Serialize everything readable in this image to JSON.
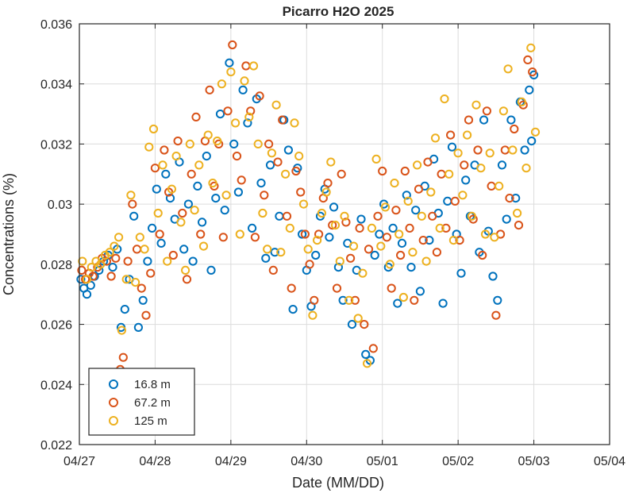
{
  "chart_data": {
    "type": "scatter",
    "title": "Picarro H2O 2025",
    "xlabel": "Date (MM/DD)",
    "ylabel": "Concentrations (%)",
    "x_ticks": [
      "04/27",
      "04/28",
      "04/29",
      "04/30",
      "05/01",
      "05/02",
      "05/03",
      "05/04"
    ],
    "y_ticks": [
      "0.022",
      "0.024",
      "0.026",
      "0.028",
      "0.03",
      "0.032",
      "0.034",
      "0.036"
    ],
    "x_unit": "days since 04/27 00:00",
    "xlim": [
      0,
      7
    ],
    "ylim": [
      0.022,
      0.036
    ],
    "grid": true,
    "legend_position": "bottom-left",
    "series": [
      {
        "name": "16.8 m",
        "color": "#0072BD",
        "points": [
          [
            0.02,
            0.0275
          ],
          [
            0.06,
            0.0272
          ],
          [
            0.1,
            0.027
          ],
          [
            0.15,
            0.0273
          ],
          [
            0.2,
            0.0276
          ],
          [
            0.26,
            0.0278
          ],
          [
            0.32,
            0.0281
          ],
          [
            0.38,
            0.0283
          ],
          [
            0.44,
            0.0279
          ],
          [
            0.5,
            0.0285
          ],
          [
            0.55,
            0.0259
          ],
          [
            0.6,
            0.0265
          ],
          [
            0.66,
            0.0275
          ],
          [
            0.72,
            0.0296
          ],
          [
            0.78,
            0.0259
          ],
          [
            0.84,
            0.0268
          ],
          [
            0.9,
            0.0281
          ],
          [
            0.96,
            0.0292
          ],
          [
            1.02,
            0.0305
          ],
          [
            1.08,
            0.0287
          ],
          [
            1.14,
            0.031
          ],
          [
            1.2,
            0.0302
          ],
          [
            1.26,
            0.0295
          ],
          [
            1.32,
            0.0314
          ],
          [
            1.38,
            0.0285
          ],
          [
            1.44,
            0.03
          ],
          [
            1.5,
            0.0281
          ],
          [
            1.56,
            0.0306
          ],
          [
            1.62,
            0.0294
          ],
          [
            1.68,
            0.0316
          ],
          [
            1.74,
            0.0278
          ],
          [
            1.8,
            0.0302
          ],
          [
            1.86,
            0.033
          ],
          [
            1.92,
            0.0298
          ],
          [
            1.98,
            0.0347
          ],
          [
            2.04,
            0.032
          ],
          [
            2.1,
            0.0304
          ],
          [
            2.16,
            0.0338
          ],
          [
            2.22,
            0.0327
          ],
          [
            2.28,
            0.0292
          ],
          [
            2.34,
            0.0335
          ],
          [
            2.4,
            0.0307
          ],
          [
            2.46,
            0.0282
          ],
          [
            2.52,
            0.0313
          ],
          [
            2.58,
            0.0284
          ],
          [
            2.64,
            0.0296
          ],
          [
            2.7,
            0.0328
          ],
          [
            2.76,
            0.0318
          ],
          [
            2.82,
            0.0265
          ],
          [
            2.88,
            0.0312
          ],
          [
            2.94,
            0.029
          ],
          [
            3.0,
            0.0278
          ],
          [
            3.06,
            0.0266
          ],
          [
            3.12,
            0.0283
          ],
          [
            3.18,
            0.0296
          ],
          [
            3.24,
            0.0305
          ],
          [
            3.3,
            0.0289
          ],
          [
            3.36,
            0.0299
          ],
          [
            3.42,
            0.0279
          ],
          [
            3.48,
            0.0268
          ],
          [
            3.54,
            0.0287
          ],
          [
            3.6,
            0.026
          ],
          [
            3.66,
            0.0278
          ],
          [
            3.72,
            0.0295
          ],
          [
            3.78,
            0.025
          ],
          [
            3.84,
            0.0248
          ],
          [
            3.9,
            0.0283
          ],
          [
            3.96,
            0.029
          ],
          [
            4.02,
            0.03
          ],
          [
            4.08,
            0.0279
          ],
          [
            4.14,
            0.0292
          ],
          [
            4.2,
            0.0267
          ],
          [
            4.26,
            0.0287
          ],
          [
            4.32,
            0.0303
          ],
          [
            4.38,
            0.0279
          ],
          [
            4.44,
            0.0298
          ],
          [
            4.5,
            0.0271
          ],
          [
            4.56,
            0.0306
          ],
          [
            4.62,
            0.0288
          ],
          [
            4.68,
            0.0315
          ],
          [
            4.74,
            0.0297
          ],
          [
            4.8,
            0.0267
          ],
          [
            4.86,
            0.0301
          ],
          [
            4.92,
            0.0319
          ],
          [
            4.98,
            0.029
          ],
          [
            5.04,
            0.0277
          ],
          [
            5.1,
            0.0308
          ],
          [
            5.16,
            0.0296
          ],
          [
            5.22,
            0.0313
          ],
          [
            5.28,
            0.0284
          ],
          [
            5.34,
            0.0328
          ],
          [
            5.4,
            0.0291
          ],
          [
            5.46,
            0.0276
          ],
          [
            5.52,
            0.0268
          ],
          [
            5.58,
            0.0313
          ],
          [
            5.64,
            0.0295
          ],
          [
            5.7,
            0.0328
          ],
          [
            5.76,
            0.0302
          ],
          [
            5.82,
            0.0334
          ],
          [
            5.88,
            0.0318
          ],
          [
            5.94,
            0.0338
          ],
          [
            5.97,
            0.0321
          ],
          [
            6.0,
            0.0343
          ]
        ]
      },
      {
        "name": "67.2 m",
        "color": "#D95319",
        "points": [
          [
            0.03,
            0.0278
          ],
          [
            0.08,
            0.0275
          ],
          [
            0.13,
            0.0277
          ],
          [
            0.18,
            0.0276
          ],
          [
            0.24,
            0.0279
          ],
          [
            0.3,
            0.0282
          ],
          [
            0.36,
            0.0281
          ],
          [
            0.42,
            0.0276
          ],
          [
            0.48,
            0.0282
          ],
          [
            0.54,
            0.0245
          ],
          [
            0.58,
            0.0249
          ],
          [
            0.64,
            0.0281
          ],
          [
            0.7,
            0.03
          ],
          [
            0.76,
            0.0285
          ],
          [
            0.82,
            0.0272
          ],
          [
            0.88,
            0.0263
          ],
          [
            0.94,
            0.0277
          ],
          [
            1.0,
            0.0312
          ],
          [
            1.06,
            0.029
          ],
          [
            1.12,
            0.0318
          ],
          [
            1.18,
            0.0304
          ],
          [
            1.24,
            0.0283
          ],
          [
            1.3,
            0.0321
          ],
          [
            1.36,
            0.0297
          ],
          [
            1.42,
            0.0275
          ],
          [
            1.48,
            0.031
          ],
          [
            1.54,
            0.0329
          ],
          [
            1.6,
            0.029
          ],
          [
            1.66,
            0.0321
          ],
          [
            1.72,
            0.0338
          ],
          [
            1.78,
            0.0306
          ],
          [
            1.84,
            0.032
          ],
          [
            1.9,
            0.0289
          ],
          [
            1.96,
            0.0331
          ],
          [
            2.02,
            0.0353
          ],
          [
            2.08,
            0.0316
          ],
          [
            2.14,
            0.0308
          ],
          [
            2.2,
            0.0346
          ],
          [
            2.26,
            0.0331
          ],
          [
            2.32,
            0.0289
          ],
          [
            2.38,
            0.0336
          ],
          [
            2.44,
            0.0303
          ],
          [
            2.5,
            0.032
          ],
          [
            2.56,
            0.0278
          ],
          [
            2.62,
            0.0314
          ],
          [
            2.68,
            0.0328
          ],
          [
            2.74,
            0.0296
          ],
          [
            2.8,
            0.0272
          ],
          [
            2.86,
            0.0311
          ],
          [
            2.92,
            0.0304
          ],
          [
            2.98,
            0.029
          ],
          [
            3.04,
            0.028
          ],
          [
            3.1,
            0.0268
          ],
          [
            3.16,
            0.029
          ],
          [
            3.22,
            0.0302
          ],
          [
            3.28,
            0.0307
          ],
          [
            3.34,
            0.0293
          ],
          [
            3.4,
            0.0272
          ],
          [
            3.46,
            0.031
          ],
          [
            3.52,
            0.0294
          ],
          [
            3.58,
            0.0282
          ],
          [
            3.64,
            0.0268
          ],
          [
            3.7,
            0.0292
          ],
          [
            3.76,
            0.026
          ],
          [
            3.82,
            0.0285
          ],
          [
            3.88,
            0.0252
          ],
          [
            3.94,
            0.0296
          ],
          [
            4.0,
            0.0311
          ],
          [
            4.06,
            0.0289
          ],
          [
            4.12,
            0.0272
          ],
          [
            4.18,
            0.0298
          ],
          [
            4.24,
            0.0283
          ],
          [
            4.3,
            0.0311
          ],
          [
            4.36,
            0.0292
          ],
          [
            4.42,
            0.0268
          ],
          [
            4.48,
            0.0305
          ],
          [
            4.54,
            0.0288
          ],
          [
            4.6,
            0.0314
          ],
          [
            4.66,
            0.0296
          ],
          [
            4.72,
            0.0284
          ],
          [
            4.78,
            0.031
          ],
          [
            4.84,
            0.0292
          ],
          [
            4.9,
            0.0323
          ],
          [
            4.96,
            0.0301
          ],
          [
            5.02,
            0.0288
          ],
          [
            5.08,
            0.0313
          ],
          [
            5.14,
            0.0328
          ],
          [
            5.2,
            0.0295
          ],
          [
            5.26,
            0.0318
          ],
          [
            5.32,
            0.0283
          ],
          [
            5.38,
            0.0331
          ],
          [
            5.44,
            0.0306
          ],
          [
            5.5,
            0.0263
          ],
          [
            5.56,
            0.029
          ],
          [
            5.62,
            0.0318
          ],
          [
            5.68,
            0.0302
          ],
          [
            5.74,
            0.0325
          ],
          [
            5.8,
            0.0293
          ],
          [
            5.86,
            0.0333
          ],
          [
            5.92,
            0.0348
          ],
          [
            5.98,
            0.0344
          ]
        ]
      },
      {
        "name": "125 m",
        "color": "#EDB120",
        "points": [
          [
            0.04,
            0.0281
          ],
          [
            0.1,
            0.0275
          ],
          [
            0.16,
            0.0279
          ],
          [
            0.22,
            0.0281
          ],
          [
            0.28,
            0.028
          ],
          [
            0.34,
            0.0283
          ],
          [
            0.4,
            0.0284
          ],
          [
            0.46,
            0.0286
          ],
          [
            0.52,
            0.0289
          ],
          [
            0.56,
            0.0258
          ],
          [
            0.62,
            0.0275
          ],
          [
            0.68,
            0.0303
          ],
          [
            0.74,
            0.0274
          ],
          [
            0.8,
            0.0289
          ],
          [
            0.86,
            0.0285
          ],
          [
            0.92,
            0.0319
          ],
          [
            0.98,
            0.0325
          ],
          [
            1.04,
            0.0297
          ],
          [
            1.1,
            0.0313
          ],
          [
            1.16,
            0.0281
          ],
          [
            1.22,
            0.0305
          ],
          [
            1.28,
            0.0316
          ],
          [
            1.34,
            0.0294
          ],
          [
            1.4,
            0.0278
          ],
          [
            1.46,
            0.032
          ],
          [
            1.52,
            0.0298
          ],
          [
            1.58,
            0.0313
          ],
          [
            1.64,
            0.0286
          ],
          [
            1.7,
            0.0323
          ],
          [
            1.76,
            0.0307
          ],
          [
            1.82,
            0.0321
          ],
          [
            1.88,
            0.034
          ],
          [
            1.94,
            0.0303
          ],
          [
            2.0,
            0.0344
          ],
          [
            2.06,
            0.0327
          ],
          [
            2.12,
            0.029
          ],
          [
            2.18,
            0.0341
          ],
          [
            2.24,
            0.0329
          ],
          [
            2.3,
            0.0346
          ],
          [
            2.36,
            0.032
          ],
          [
            2.42,
            0.0297
          ],
          [
            2.48,
            0.0285
          ],
          [
            2.54,
            0.0317
          ],
          [
            2.6,
            0.0333
          ],
          [
            2.66,
            0.0284
          ],
          [
            2.72,
            0.031
          ],
          [
            2.78,
            0.0292
          ],
          [
            2.84,
            0.0327
          ],
          [
            2.9,
            0.0316
          ],
          [
            2.96,
            0.03
          ],
          [
            3.02,
            0.0285
          ],
          [
            3.08,
            0.0263
          ],
          [
            3.14,
            0.0288
          ],
          [
            3.2,
            0.0297
          ],
          [
            3.26,
            0.0304
          ],
          [
            3.32,
            0.0314
          ],
          [
            3.38,
            0.0293
          ],
          [
            3.44,
            0.0281
          ],
          [
            3.5,
            0.0296
          ],
          [
            3.56,
            0.0268
          ],
          [
            3.62,
            0.0286
          ],
          [
            3.68,
            0.0262
          ],
          [
            3.74,
            0.0277
          ],
          [
            3.8,
            0.0247
          ],
          [
            3.86,
            0.0292
          ],
          [
            3.92,
            0.0315
          ],
          [
            3.98,
            0.0286
          ],
          [
            4.04,
            0.0299
          ],
          [
            4.1,
            0.028
          ],
          [
            4.16,
            0.0307
          ],
          [
            4.22,
            0.029
          ],
          [
            4.28,
            0.0269
          ],
          [
            4.34,
            0.0301
          ],
          [
            4.4,
            0.0284
          ],
          [
            4.46,
            0.0313
          ],
          [
            4.52,
            0.0296
          ],
          [
            4.58,
            0.0281
          ],
          [
            4.64,
            0.0304
          ],
          [
            4.7,
            0.0322
          ],
          [
            4.76,
            0.0292
          ],
          [
            4.82,
            0.0335
          ],
          [
            4.88,
            0.031
          ],
          [
            4.94,
            0.0288
          ],
          [
            5.0,
            0.0317
          ],
          [
            5.06,
            0.0303
          ],
          [
            5.12,
            0.0323
          ],
          [
            5.18,
            0.0296
          ],
          [
            5.24,
            0.0333
          ],
          [
            5.3,
            0.0312
          ],
          [
            5.36,
            0.029
          ],
          [
            5.42,
            0.0317
          ],
          [
            5.48,
            0.0289
          ],
          [
            5.54,
            0.0306
          ],
          [
            5.6,
            0.0331
          ],
          [
            5.66,
            0.0345
          ],
          [
            5.72,
            0.0318
          ],
          [
            5.78,
            0.0297
          ],
          [
            5.84,
            0.0334
          ],
          [
            5.9,
            0.0312
          ],
          [
            5.96,
            0.0352
          ],
          [
            6.02,
            0.0324
          ]
        ]
      }
    ]
  }
}
